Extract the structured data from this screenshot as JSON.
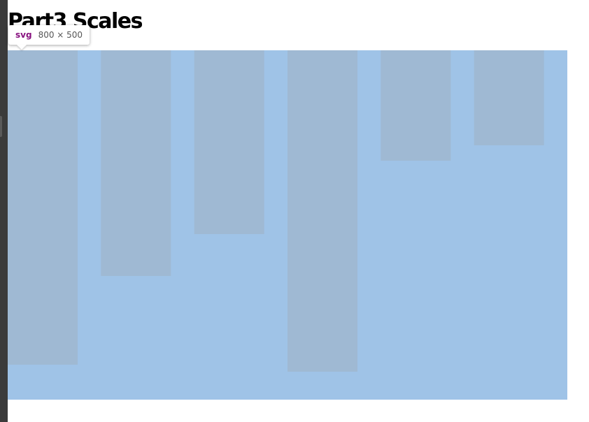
{
  "page": {
    "heading": "Part3 Scales"
  },
  "inspector_tooltip": {
    "tag": "svg",
    "size": "800 × 500"
  },
  "colors": {
    "chart_background": "#9fc3e7",
    "bar_fill": "#9fb9d3",
    "devtools_strip": "#3b3b3b"
  },
  "chart_data": {
    "type": "bar",
    "orientation": "top-down",
    "categories": [
      "",
      "",
      "",
      "",
      "",
      ""
    ],
    "values": [
      450,
      323,
      263,
      460,
      158,
      136
    ],
    "ylim": [
      0,
      500
    ],
    "grid": false,
    "legend": "none"
  }
}
